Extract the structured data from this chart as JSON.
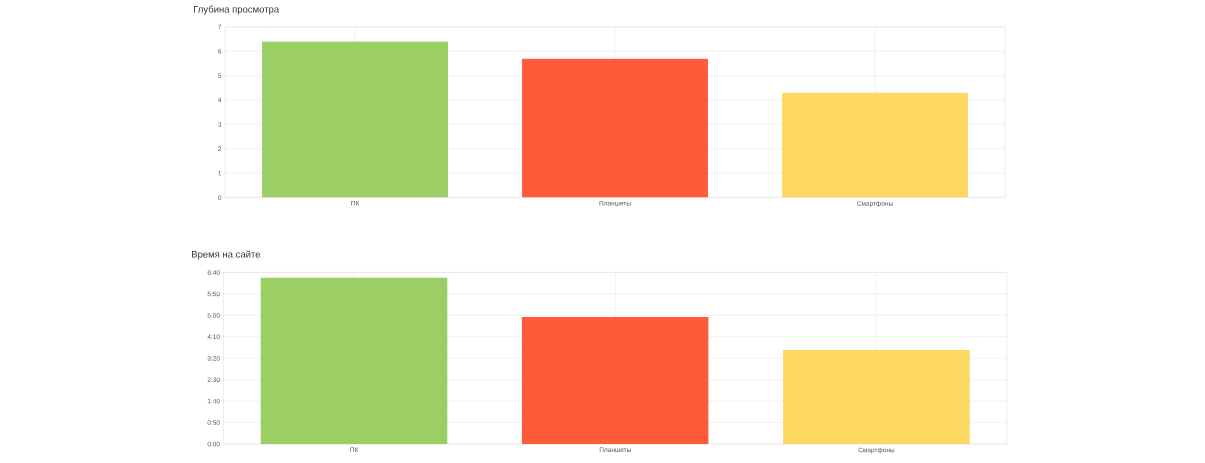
{
  "chart_data": [
    {
      "type": "bar",
      "title": "Глубина просмотра",
      "categories": [
        "ПК",
        "Планшеты",
        "Смартфоны"
      ],
      "values": [
        6.4,
        5.7,
        4.3
      ],
      "colors": [
        "#9bce65",
        "#ff5b3b",
        "#fdd963"
      ],
      "ylim": [
        0,
        7
      ],
      "yticks": [
        0,
        1,
        2,
        3,
        4,
        5,
        6,
        7
      ],
      "grid": true
    },
    {
      "type": "bar",
      "title": "Время на сайте",
      "categories": [
        "ПК",
        "Планшеты",
        "Смартфоны"
      ],
      "values": [
        388,
        296,
        219
      ],
      "colors": [
        "#9bce65",
        "#ff5b3b",
        "#fdd963"
      ],
      "ylim": [
        0,
        400
      ],
      "yticks": [
        {
          "value": 0,
          "label": "0:00"
        },
        {
          "value": 50,
          "label": "0:50"
        },
        {
          "value": 100,
          "label": "1:40"
        },
        {
          "value": 150,
          "label": "2:30"
        },
        {
          "value": 200,
          "label": "3:20"
        },
        {
          "value": 250,
          "label": "4:10"
        },
        {
          "value": 300,
          "label": "5:00"
        },
        {
          "value": 350,
          "label": "5:50"
        },
        {
          "value": 400,
          "label": "6:40"
        }
      ],
      "grid": true
    }
  ]
}
